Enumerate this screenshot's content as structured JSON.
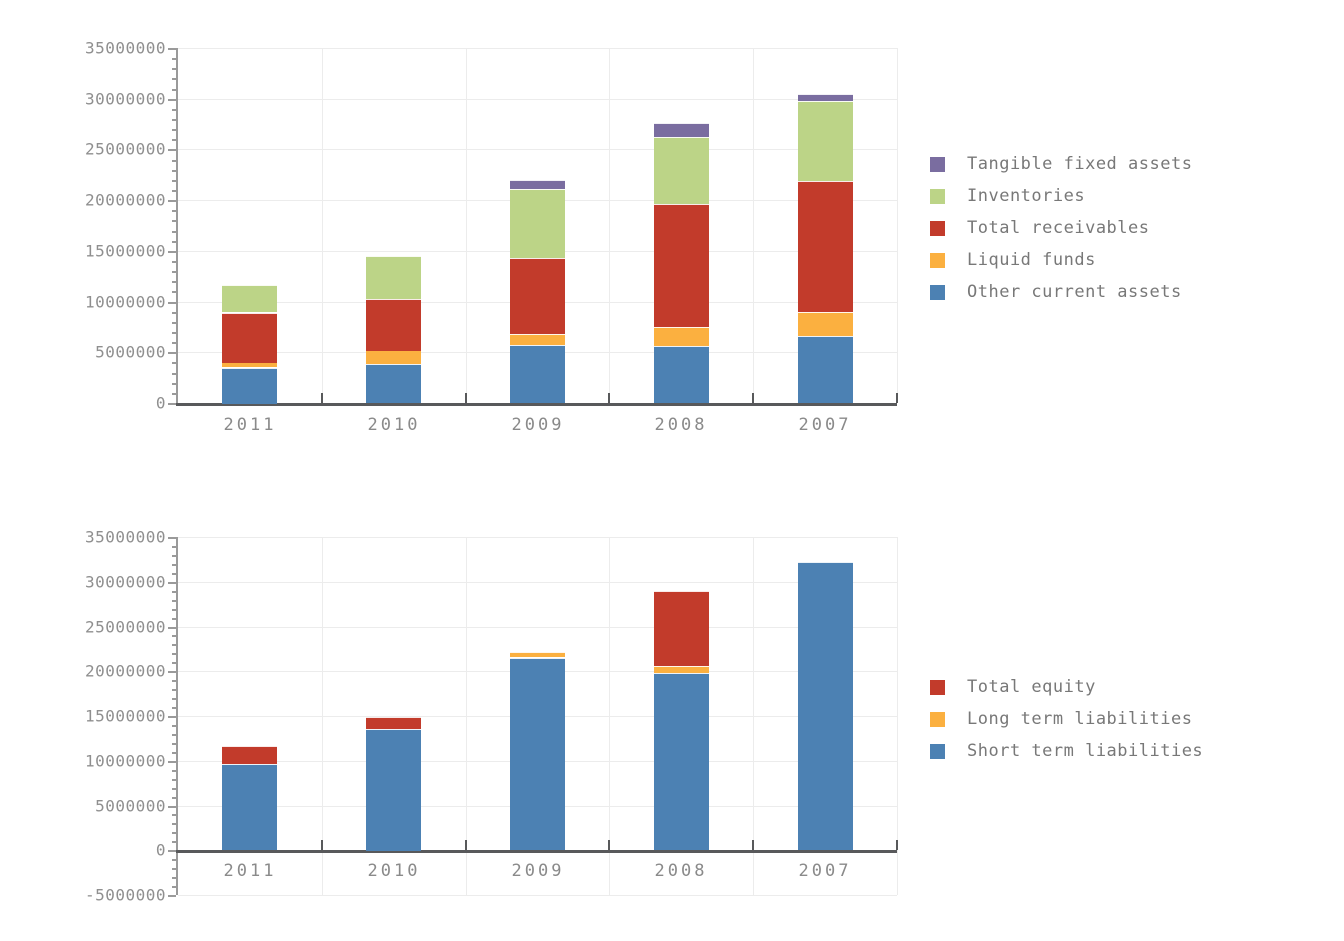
{
  "page": {
    "background_color": "#ffffff"
  },
  "colors": {
    "grid": "#ececec",
    "axis_dark": "#58595b",
    "axis_light": "#9a9a9a",
    "tick_text": "#8f8f8f",
    "legend_text": "#787878"
  },
  "chart_data": [
    {
      "id": "assets-chart",
      "type": "bar",
      "subtype": "stacked",
      "title": "",
      "xlabel": "",
      "ylabel": "",
      "categories": [
        "2011",
        "2010",
        "2009",
        "2008",
        "2007"
      ],
      "series": [
        {
          "name": "Other current assets",
          "color": "#4C81B3",
          "values": [
            3500000,
            3800000,
            5700000,
            5600000,
            6600000
          ]
        },
        {
          "name": "Liquid funds",
          "color": "#FBB040",
          "values": [
            500000,
            1400000,
            1100000,
            1900000,
            2400000
          ]
        },
        {
          "name": "Total receivables",
          "color": "#C23B2B",
          "values": [
            4900000,
            5100000,
            7500000,
            12100000,
            12900000
          ]
        },
        {
          "name": "Inventories",
          "color": "#BCD487",
          "values": [
            2700000,
            4200000,
            6800000,
            6600000,
            7900000
          ]
        },
        {
          "name": "Tangible fixed assets",
          "color": "#7A6DA0",
          "values": [
            0,
            0,
            900000,
            1400000,
            700000
          ]
        }
      ],
      "stack_totals": [
        11600000,
        14500000,
        22000000,
        27600000,
        30500000
      ],
      "ylim": [
        0,
        35000000
      ],
      "yticks": [
        0,
        5000000,
        10000000,
        15000000,
        20000000,
        25000000,
        30000000,
        35000000
      ],
      "ytick_labels": [
        "0",
        "5000000",
        "10000000",
        "15000000",
        "20000000",
        "25000000",
        "30000000",
        "35000000"
      ],
      "minor_tick_step": 1000000,
      "grid": true,
      "legend_position": "right",
      "legend": [
        "Tangible fixed assets",
        "Inventories",
        "Total receivables",
        "Liquid funds",
        "Other current assets"
      ]
    },
    {
      "id": "liabilities-chart",
      "type": "bar",
      "subtype": "stacked",
      "title": "",
      "xlabel": "",
      "ylabel": "",
      "categories": [
        "2011",
        "2010",
        "2009",
        "2008",
        "2007"
      ],
      "series": [
        {
          "name": "Short term liabilities",
          "color": "#4C81B3",
          "values": [
            9600000,
            13600000,
            21500000,
            19800000,
            32200000
          ]
        },
        {
          "name": "Long term liabilities",
          "color": "#FBB040",
          "values": [
            0,
            0,
            600000,
            800000,
            0
          ]
        },
        {
          "name": "Total equity",
          "color": "#C23B2B",
          "values": [
            2000000,
            1300000,
            0,
            8400000,
            0
          ]
        }
      ],
      "stack_totals": [
        11600000,
        14900000,
        22100000,
        29000000,
        32200000
      ],
      "ylim": [
        -5000000,
        35000000
      ],
      "yticks": [
        -5000000,
        0,
        5000000,
        10000000,
        15000000,
        20000000,
        25000000,
        30000000,
        35000000
      ],
      "ytick_labels": [
        "-5000000",
        "0",
        "5000000",
        "10000000",
        "15000000",
        "20000000",
        "25000000",
        "30000000",
        "35000000"
      ],
      "minor_tick_step": 1000000,
      "grid": true,
      "legend_position": "right",
      "legend": [
        "Total equity",
        "Long term liabilities",
        "Short term liabilities"
      ]
    }
  ]
}
